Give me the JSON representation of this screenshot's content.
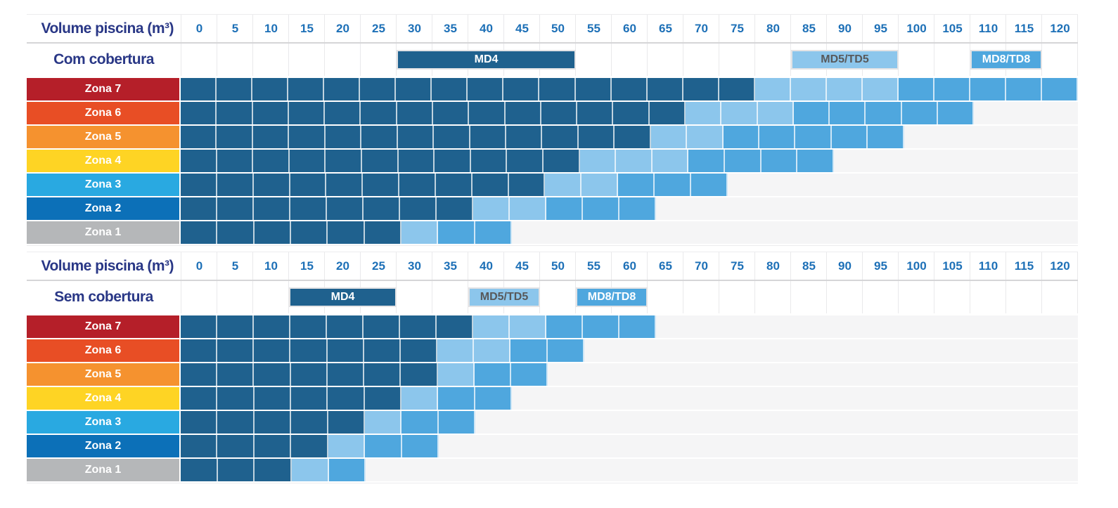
{
  "page": {
    "background": "#ffffff"
  },
  "chart_data": {
    "type": "heatmap",
    "description": "Pool heat pump model selection grid by pool volume and climate zone",
    "volume_axis": [
      0,
      5,
      10,
      15,
      20,
      25,
      30,
      35,
      40,
      45,
      50,
      55,
      60,
      65,
      70,
      75,
      80,
      85,
      90,
      95,
      100,
      105,
      110,
      115,
      120
    ],
    "axis_range": [
      0,
      120
    ],
    "models": [
      {
        "label": "MD4",
        "color": "#1f618e",
        "text_color": "#ffffff"
      },
      {
        "label": "MD5/TD5",
        "color": "#8cc6ec",
        "text_color": "#58595b"
      },
      {
        "label": "MD8/TD8",
        "color": "#4fa7de",
        "text_color": "#ffffff"
      }
    ],
    "colors": {
      "axis_text": "#1d70b7",
      "title_text": "#293786",
      "empty_cell": "#f5f5f6",
      "separator": "#d5d5d7",
      "gridline": "#e9e9eb"
    },
    "tables": [
      {
        "title": "Com cobertura",
        "axis_label": "Volume piscina (m³)",
        "legend_boxes": [
          {
            "model": "MD4",
            "from": 30,
            "to": 50
          },
          {
            "model": "MD5/TD5",
            "from": 85,
            "to": 95
          },
          {
            "model": "MD8/TD8",
            "from": 110,
            "to": 115
          }
        ],
        "rows": [
          {
            "zone": "Zona 7",
            "color": "#b51f29",
            "ranges": {
              "MD4": [
                0,
                75
              ],
              "MD5/TD5": [
                80,
                95
              ],
              "MD8/TD8": [
                100,
                120
              ]
            }
          },
          {
            "zone": "Zona 6",
            "color": "#e84e25",
            "ranges": {
              "MD4": [
                0,
                65
              ],
              "MD5/TD5": [
                70,
                80
              ],
              "MD8/TD8": [
                85,
                105
              ]
            }
          },
          {
            "zone": "Zona 5",
            "color": "#f5922f",
            "ranges": {
              "MD4": [
                0,
                60
              ],
              "MD5/TD5": [
                65,
                70
              ],
              "MD8/TD8": [
                75,
                95
              ]
            }
          },
          {
            "zone": "Zona 4",
            "color": "#fed424",
            "ranges": {
              "MD4": [
                0,
                50
              ],
              "MD5/TD5": [
                55,
                65
              ],
              "MD8/TD8": [
                70,
                85
              ]
            }
          },
          {
            "zone": "Zona 3",
            "color": "#29a9e1",
            "ranges": {
              "MD4": [
                0,
                45
              ],
              "MD5/TD5": [
                50,
                55
              ],
              "MD8/TD8": [
                60,
                70
              ]
            }
          },
          {
            "zone": "Zona 2",
            "color": "#0c70b8",
            "ranges": {
              "MD4": [
                0,
                35
              ],
              "MD5/TD5": [
                40,
                45
              ],
              "MD8/TD8": [
                50,
                60
              ]
            }
          },
          {
            "zone": "Zona 1",
            "color": "#b5b7b9",
            "ranges": {
              "MD4": [
                0,
                25
              ],
              "MD5/TD5": [
                30,
                30
              ],
              "MD8/TD8": [
                35,
                40
              ]
            }
          }
        ]
      },
      {
        "title": "Sem cobertura",
        "axis_label": "Volume piscina (m³)",
        "legend_boxes": [
          {
            "model": "MD4",
            "from": 15,
            "to": 25
          },
          {
            "model": "MD5/TD5",
            "from": 40,
            "to": 45
          },
          {
            "model": "MD8/TD8",
            "from": 55,
            "to": 60
          }
        ],
        "rows": [
          {
            "zone": "Zona 7",
            "color": "#b51f29",
            "ranges": {
              "MD4": [
                0,
                35
              ],
              "MD5/TD5": [
                40,
                45
              ],
              "MD8/TD8": [
                50,
                60
              ]
            }
          },
          {
            "zone": "Zona 6",
            "color": "#e84e25",
            "ranges": {
              "MD4": [
                0,
                30
              ],
              "MD5/TD5": [
                35,
                40
              ],
              "MD8/TD8": [
                45,
                50
              ]
            }
          },
          {
            "zone": "Zona 5",
            "color": "#f5922f",
            "ranges": {
              "MD4": [
                0,
                30
              ],
              "MD5/TD5": [
                35,
                35
              ],
              "MD8/TD8": [
                40,
                45
              ]
            }
          },
          {
            "zone": "Zona 4",
            "color": "#fed424",
            "ranges": {
              "MD4": [
                0,
                25
              ],
              "MD5/TD5": [
                30,
                30
              ],
              "MD8/TD8": [
                35,
                40
              ]
            }
          },
          {
            "zone": "Zona 3",
            "color": "#29a9e1",
            "ranges": {
              "MD4": [
                0,
                20
              ],
              "MD5/TD5": [
                25,
                25
              ],
              "MD8/TD8": [
                30,
                35
              ]
            }
          },
          {
            "zone": "Zona 2",
            "color": "#0c70b8",
            "ranges": {
              "MD4": [
                0,
                15
              ],
              "MD5/TD5": [
                20,
                20
              ],
              "MD8/TD8": [
                25,
                30
              ]
            }
          },
          {
            "zone": "Zona 1",
            "color": "#b5b7b9",
            "ranges": {
              "MD4": [
                0,
                10
              ],
              "MD5/TD5": [
                15,
                15
              ],
              "MD8/TD8": [
                20,
                20
              ]
            }
          }
        ]
      }
    ]
  }
}
